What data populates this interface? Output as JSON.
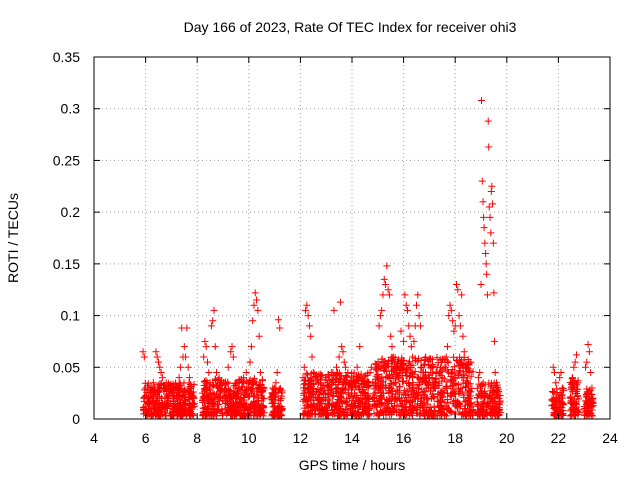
{
  "chart_data": {
    "type": "scatter",
    "title": "Day 166 of 2023, Rate Of TEC Index for receiver ohi3",
    "xlabel": "GPS time / hours",
    "ylabel": "ROTI / TECUs",
    "xlim": [
      4,
      24
    ],
    "ylim": [
      0,
      0.35
    ],
    "xticks": [
      4,
      6,
      8,
      10,
      12,
      14,
      16,
      18,
      20,
      22,
      24
    ],
    "yticks": [
      0,
      0.05,
      0.1,
      0.15,
      0.2,
      0.25,
      0.3,
      0.35
    ],
    "xtick_labels": [
      "4",
      "6",
      "8",
      "10",
      "12",
      "14",
      "16",
      "18",
      "20",
      "22",
      "24"
    ],
    "ytick_labels": [
      "0",
      "0.05",
      "0.1",
      "0.15",
      "0.2",
      "0.25",
      "0.3",
      "0.35"
    ],
    "grid": true,
    "marker": "plus",
    "color": "#ff0000",
    "series": [
      {
        "name": "ROTI",
        "points": [
          [
            5.9,
            0.065
          ],
          [
            5.95,
            0.06
          ],
          [
            6.0,
            0.03
          ],
          [
            6.05,
            0.02
          ],
          [
            6.1,
            0.015
          ],
          [
            6.15,
            0.01
          ],
          [
            6.2,
            0.025
          ],
          [
            6.25,
            0.02
          ],
          [
            6.3,
            0.035
          ],
          [
            6.35,
            0.015
          ],
          [
            6.4,
            0.065
          ],
          [
            6.45,
            0.06
          ],
          [
            6.5,
            0.055
          ],
          [
            6.55,
            0.05
          ],
          [
            6.6,
            0.045
          ],
          [
            6.65,
            0.04
          ],
          [
            6.7,
            0.03
          ],
          [
            6.75,
            0.02
          ],
          [
            6.8,
            0.035
          ],
          [
            6.85,
            0.01
          ],
          [
            6.9,
            0.02
          ],
          [
            6.95,
            0.015
          ],
          [
            7.0,
            0.025
          ],
          [
            7.1,
            0.03
          ],
          [
            7.2,
            0.02
          ],
          [
            7.3,
            0.04
          ],
          [
            7.35,
            0.05
          ],
          [
            7.4,
            0.088
          ],
          [
            7.45,
            0.06
          ],
          [
            7.5,
            0.07
          ],
          [
            7.55,
            0.06
          ],
          [
            7.6,
            0.088
          ],
          [
            7.65,
            0.05
          ],
          [
            7.7,
            0.04
          ],
          [
            7.75,
            0.03
          ],
          [
            7.8,
            0.02
          ],
          [
            8.2,
            0.025
          ],
          [
            8.25,
            0.06
          ],
          [
            8.3,
            0.075
          ],
          [
            8.35,
            0.07
          ],
          [
            8.4,
            0.055
          ],
          [
            8.45,
            0.045
          ],
          [
            8.5,
            0.035
          ],
          [
            8.55,
            0.09
          ],
          [
            8.6,
            0.095
          ],
          [
            8.65,
            0.105
          ],
          [
            8.7,
            0.07
          ],
          [
            8.75,
            0.045
          ],
          [
            8.8,
            0.03
          ],
          [
            8.9,
            0.025
          ],
          [
            9.0,
            0.02
          ],
          [
            9.1,
            0.015
          ],
          [
            9.2,
            0.05
          ],
          [
            9.3,
            0.065
          ],
          [
            9.35,
            0.07
          ],
          [
            9.4,
            0.06
          ],
          [
            9.5,
            0.03
          ],
          [
            9.6,
            0.025
          ],
          [
            9.7,
            0.02
          ],
          [
            9.8,
            0.04
          ],
          [
            9.9,
            0.045
          ],
          [
            10.0,
            0.035
          ],
          [
            10.05,
            0.055
          ],
          [
            10.1,
            0.07
          ],
          [
            10.15,
            0.095
          ],
          [
            10.2,
            0.11
          ],
          [
            10.25,
            0.122
          ],
          [
            10.3,
            0.115
          ],
          [
            10.35,
            0.105
          ],
          [
            10.4,
            0.08
          ],
          [
            10.45,
            0.045
          ],
          [
            10.5,
            0.03
          ],
          [
            10.55,
            0.02
          ],
          [
            10.9,
            0.015
          ],
          [
            10.95,
            0.025
          ],
          [
            11.0,
            0.03
          ],
          [
            11.05,
            0.035
          ],
          [
            11.1,
            0.045
          ],
          [
            11.15,
            0.096
          ],
          [
            11.2,
            0.088
          ],
          [
            11.25,
            0.02
          ],
          [
            11.3,
            0.01
          ],
          [
            12.1,
            0.04
          ],
          [
            12.15,
            0.05
          ],
          [
            12.2,
            0.105
          ],
          [
            12.25,
            0.11
          ],
          [
            12.3,
            0.1
          ],
          [
            12.35,
            0.09
          ],
          [
            12.4,
            0.08
          ],
          [
            12.45,
            0.06
          ],
          [
            12.5,
            0.045
          ],
          [
            12.6,
            0.04
          ],
          [
            12.7,
            0.035
          ],
          [
            12.8,
            0.03
          ],
          [
            12.9,
            0.025
          ],
          [
            13.0,
            0.04
          ],
          [
            13.05,
            0.035
          ],
          [
            13.1,
            0.03
          ],
          [
            13.2,
            0.045
          ],
          [
            13.3,
            0.105
          ],
          [
            13.4,
            0.05
          ],
          [
            13.5,
            0.06
          ],
          [
            13.55,
            0.113
          ],
          [
            13.6,
            0.07
          ],
          [
            13.65,
            0.065
          ],
          [
            13.7,
            0.055
          ],
          [
            13.75,
            0.05
          ],
          [
            13.8,
            0.04
          ],
          [
            13.9,
            0.035
          ],
          [
            14.0,
            0.03
          ],
          [
            14.1,
            0.025
          ],
          [
            14.2,
            0.05
          ],
          [
            14.3,
            0.07
          ],
          [
            14.4,
            0.02
          ],
          [
            14.5,
            0.015
          ],
          [
            14.6,
            0.01
          ],
          [
            14.7,
            0.045
          ],
          [
            14.75,
            0.05
          ],
          [
            14.8,
            0.02
          ],
          [
            14.9,
            0.035
          ],
          [
            15.0,
            0.04
          ],
          [
            15.05,
            0.09
          ],
          [
            15.1,
            0.1
          ],
          [
            15.15,
            0.105
          ],
          [
            15.2,
            0.12
          ],
          [
            15.25,
            0.135
          ],
          [
            15.3,
            0.13
          ],
          [
            15.35,
            0.148
          ],
          [
            15.4,
            0.125
          ],
          [
            15.45,
            0.12
          ],
          [
            15.5,
            0.08
          ],
          [
            15.55,
            0.07
          ],
          [
            15.6,
            0.06
          ],
          [
            15.65,
            0.055
          ],
          [
            15.7,
            0.05
          ],
          [
            15.75,
            0.045
          ],
          [
            15.8,
            0.04
          ],
          [
            15.9,
            0.085
          ],
          [
            16.0,
            0.075
          ],
          [
            16.05,
            0.12
          ],
          [
            16.1,
            0.11
          ],
          [
            16.15,
            0.105
          ],
          [
            16.2,
            0.09
          ],
          [
            16.25,
            0.08
          ],
          [
            16.3,
            0.07
          ],
          [
            16.35,
            0.06
          ],
          [
            16.4,
            0.075
          ],
          [
            16.45,
            0.09
          ],
          [
            16.5,
            0.11
          ],
          [
            16.55,
            0.12
          ],
          [
            16.6,
            0.1
          ],
          [
            16.65,
            0.09
          ],
          [
            16.7,
            0.05
          ],
          [
            16.75,
            0.045
          ],
          [
            16.8,
            0.04
          ],
          [
            16.85,
            0.045
          ],
          [
            16.9,
            0.035
          ],
          [
            17.0,
            0.04
          ],
          [
            17.05,
            0.045
          ],
          [
            17.1,
            0.04
          ],
          [
            17.15,
            0.035
          ],
          [
            17.2,
            0.03
          ],
          [
            17.3,
            0.05
          ],
          [
            17.4,
            0.045
          ],
          [
            17.5,
            0.04
          ],
          [
            17.6,
            0.05
          ],
          [
            17.65,
            0.06
          ],
          [
            17.7,
            0.07
          ],
          [
            17.75,
            0.1
          ],
          [
            17.8,
            0.11
          ],
          [
            17.85,
            0.105
          ],
          [
            17.9,
            0.095
          ],
          [
            17.95,
            0.085
          ],
          [
            18.0,
            0.09
          ],
          [
            18.05,
            0.13
          ],
          [
            18.1,
            0.125
          ],
          [
            18.15,
            0.1
          ],
          [
            18.2,
            0.09
          ],
          [
            18.25,
            0.12
          ],
          [
            18.3,
            0.08
          ],
          [
            18.35,
            0.065
          ],
          [
            18.4,
            0.05
          ],
          [
            18.45,
            0.035
          ],
          [
            18.5,
            0.025
          ],
          [
            18.55,
            0.02
          ],
          [
            18.6,
            0.015
          ],
          [
            18.9,
            0.04
          ],
          [
            18.95,
            0.045
          ],
          [
            19.0,
            0.13
          ],
          [
            19.02,
            0.308
          ],
          [
            19.05,
            0.23
          ],
          [
            19.08,
            0.21
          ],
          [
            19.1,
            0.195
          ],
          [
            19.12,
            0.185
          ],
          [
            19.15,
            0.17
          ],
          [
            19.18,
            0.16
          ],
          [
            19.2,
            0.15
          ],
          [
            19.22,
            0.14
          ],
          [
            19.25,
            0.12
          ],
          [
            19.28,
            0.288
          ],
          [
            19.3,
            0.263
          ],
          [
            19.32,
            0.205
          ],
          [
            19.35,
            0.195
          ],
          [
            19.38,
            0.18
          ],
          [
            19.4,
            0.22
          ],
          [
            19.42,
            0.225
          ],
          [
            19.45,
            0.208
          ],
          [
            19.48,
            0.17
          ],
          [
            19.5,
            0.122
          ],
          [
            19.52,
            0.075
          ],
          [
            19.55,
            0.045
          ],
          [
            19.6,
            0.035
          ],
          [
            19.65,
            0.03
          ],
          [
            19.7,
            0.02
          ],
          [
            21.8,
            0.05
          ],
          [
            21.85,
            0.045
          ],
          [
            21.9,
            0.035
          ],
          [
            21.95,
            0.025
          ],
          [
            22.0,
            0.02
          ],
          [
            22.05,
            0.04
          ],
          [
            22.1,
            0.045
          ],
          [
            22.15,
            0.03
          ],
          [
            22.5,
            0.03
          ],
          [
            22.55,
            0.04
          ],
          [
            22.6,
            0.05
          ],
          [
            22.65,
            0.055
          ],
          [
            22.7,
            0.062
          ],
          [
            22.75,
            0.035
          ],
          [
            23.05,
            0.05
          ],
          [
            23.1,
            0.055
          ],
          [
            23.15,
            0.072
          ],
          [
            23.2,
            0.065
          ],
          [
            23.25,
            0.045
          ],
          [
            23.3,
            0.03
          ]
        ]
      }
    ],
    "dense_clusters": [
      {
        "x_range": [
          5.9,
          7.9
        ],
        "y_range": [
          0.003,
          0.035
        ]
      },
      {
        "x_range": [
          8.2,
          10.6
        ],
        "y_range": [
          0.003,
          0.04
        ]
      },
      {
        "x_range": [
          10.85,
          11.3
        ],
        "y_range": [
          0.003,
          0.03
        ]
      },
      {
        "x_range": [
          12.1,
          14.7
        ],
        "y_range": [
          0.003,
          0.045
        ]
      },
      {
        "x_range": [
          14.8,
          18.7
        ],
        "y_range": [
          0.003,
          0.06
        ]
      },
      {
        "x_range": [
          18.85,
          19.75
        ],
        "y_range": [
          0.003,
          0.035
        ]
      },
      {
        "x_range": [
          21.75,
          22.2
        ],
        "y_range": [
          0.003,
          0.03
        ]
      },
      {
        "x_range": [
          22.45,
          22.8
        ],
        "y_range": [
          0.003,
          0.04
        ]
      },
      {
        "x_range": [
          23.0,
          23.35
        ],
        "y_range": [
          0.003,
          0.03
        ]
      }
    ]
  }
}
